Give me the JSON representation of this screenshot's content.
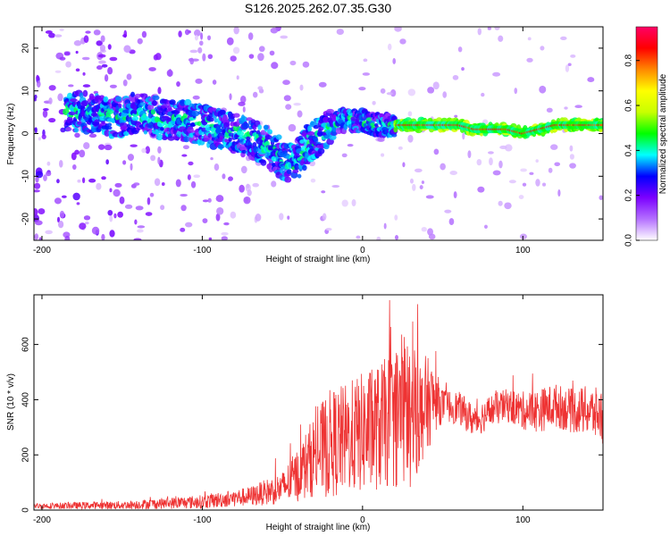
{
  "title": "S126.2025.262.07.35.G30",
  "spectrogram": {
    "type": "heatmap",
    "xlabel": "Height of straight line (km)",
    "ylabel": "Frequency (Hz)",
    "xlim": [
      -205,
      150
    ],
    "ylim": [
      -25,
      25
    ],
    "xticks": [
      -200,
      -100,
      0,
      100
    ],
    "yticks": [
      -20,
      -10,
      0,
      10,
      20
    ],
    "xtick_labels": [
      "-200",
      "-100",
      "0",
      "100"
    ],
    "ytick_labels": [
      "-20",
      "-10",
      "0",
      "10",
      "20"
    ],
    "ridge": {
      "x": [
        -180,
        -170,
        -160,
        -150,
        -140,
        -130,
        -120,
        -110,
        -100,
        -90,
        -80,
        -70,
        -60,
        -50,
        -45,
        -40,
        -35,
        -30,
        -25,
        -20,
        -15,
        -10,
        -5,
        0,
        10,
        20,
        30,
        40,
        50,
        60,
        70,
        80,
        90,
        100,
        110,
        120,
        130,
        140,
        150
      ],
      "freq": [
        5,
        5,
        4,
        4,
        5,
        4,
        3,
        3,
        2,
        1,
        0,
        -1,
        -3,
        -6,
        -7,
        -6,
        -3,
        -1,
        0,
        1,
        3,
        3,
        3,
        3,
        2,
        2,
        2,
        2,
        2,
        2,
        1,
        1,
        1,
        0,
        1,
        2,
        2,
        2,
        2
      ]
    },
    "colorbar": {
      "label": "Normalized spectral amplitude",
      "range": [
        0,
        0.95
      ],
      "ticks": [
        0.0,
        0.2,
        0.4,
        0.6,
        0.8
      ],
      "tick_labels": [
        "0.0",
        "0.2",
        "0.4",
        "0.6",
        "0.8"
      ],
      "colors": [
        "#ffffff",
        "#b470ff",
        "#7b00ff",
        "#0000ff",
        "#00ffff",
        "#00ff00",
        "#c8ff00",
        "#ffff00",
        "#ff8800",
        "#ff0000",
        "#ff0066"
      ]
    }
  },
  "snr": {
    "type": "line",
    "xlabel": "Height of straight line (km)",
    "ylabel": "SNR (10 * v/v)",
    "xlim": [
      -205,
      150
    ],
    "ylim": [
      0,
      780
    ],
    "xticks": [
      -200,
      -100,
      0,
      100
    ],
    "yticks": [
      0,
      200,
      400,
      600
    ],
    "xtick_labels": [
      "-200",
      "-100",
      "0",
      "100"
    ],
    "ytick_labels": [
      "0",
      "200",
      "400",
      "600"
    ],
    "color": "#ee3333",
    "envelope": {
      "x": [
        -205,
        -150,
        -100,
        -70,
        -50,
        -40,
        -30,
        -20,
        -10,
        0,
        10,
        20,
        25,
        30,
        40,
        45,
        50,
        60,
        70,
        80,
        90,
        100,
        110,
        120,
        130,
        140,
        150
      ],
      "base": [
        15,
        18,
        30,
        50,
        80,
        130,
        200,
        240,
        260,
        280,
        300,
        330,
        360,
        330,
        380,
        400,
        380,
        370,
        320,
        360,
        380,
        360,
        360,
        380,
        360,
        360,
        340
      ],
      "spread": [
        10,
        15,
        25,
        35,
        60,
        100,
        150,
        200,
        200,
        220,
        230,
        250,
        300,
        250,
        180,
        120,
        60,
        60,
        60,
        60,
        60,
        70,
        80,
        80,
        80,
        90,
        100
      ]
    }
  }
}
